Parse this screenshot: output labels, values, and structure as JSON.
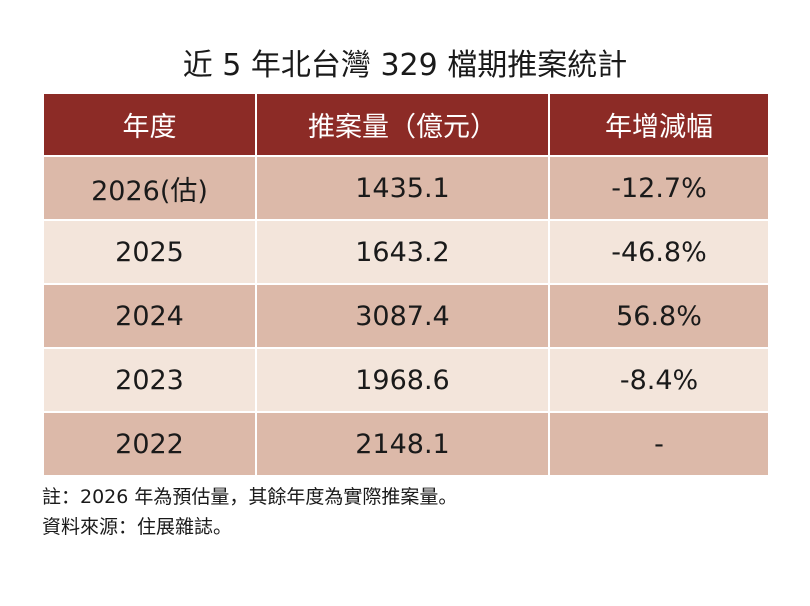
{
  "title": "近 5 年北台灣 329 檔期推案統計",
  "table": {
    "header": [
      "年度",
      "推案量（億元）",
      "年增減幅"
    ],
    "rows": [
      [
        "2026(估)",
        "1435.1",
        "-12.7%"
      ],
      [
        "2025",
        "1643.2",
        "-46.8%"
      ],
      [
        "2024",
        "3087.4",
        "56.8%"
      ],
      [
        "2023",
        "1968.6",
        "-8.4%"
      ],
      [
        "2022",
        "2148.1",
        "-"
      ]
    ]
  },
  "notes": [
    "註：2026 年為預估量，其餘年度為實際推案量。",
    "資料來源：住展雜誌。"
  ]
}
